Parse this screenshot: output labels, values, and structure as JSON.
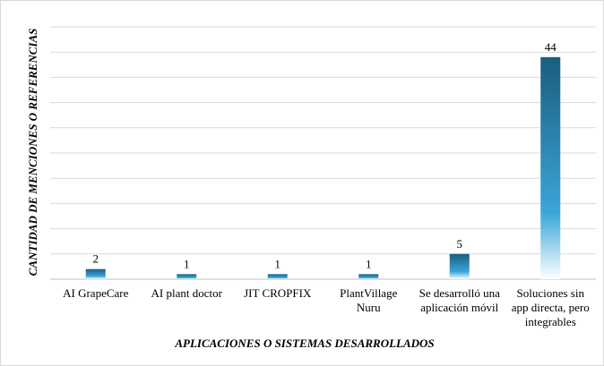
{
  "colors": {
    "bar_top": "#1a5e7e",
    "bar_mid": "#3aa6d8",
    "bar_bottom": "#ffffff"
  },
  "chart_data": {
    "type": "bar",
    "categories": [
      [
        "AI GrapeCare"
      ],
      [
        "AI plant doctor"
      ],
      [
        "JIT CROPFIX"
      ],
      [
        "PlantVillage",
        "Nuru"
      ],
      [
        "Se desarrolló una",
        "aplicación móvil"
      ],
      [
        "Soluciones sin",
        "app directa, pero",
        "integrables"
      ]
    ],
    "values": [
      2,
      1,
      1,
      1,
      5,
      44
    ],
    "data_labels": [
      "2",
      "1",
      "1",
      "1",
      "5",
      "44"
    ],
    "title": "",
    "xlabel": "APLICACIONES O SISTEMAS DESARROLLADOS",
    "ylabel": "CANTIDAD DE MENCIONES O REFERENCIAS",
    "ylim": [
      0,
      50
    ],
    "grid": true,
    "legend": "none"
  }
}
